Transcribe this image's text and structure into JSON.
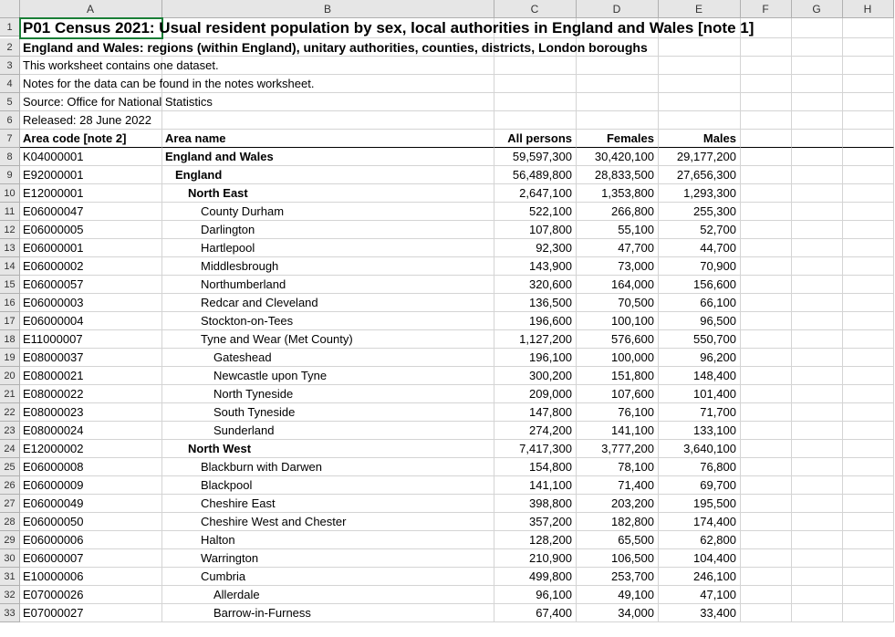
{
  "columns": [
    "A",
    "B",
    "C",
    "D",
    "E",
    "F",
    "G",
    "H"
  ],
  "rowCount": 33,
  "selectedCell": "A1",
  "title": "P01 Census 2021: Usual resident population by sex, local authorities in England and Wales [note 1]",
  "subtitle": "England and Wales: regions (within England), unitary authorities, counties, districts, London boroughs",
  "meta": {
    "line3": "This worksheet contains one dataset.",
    "line4": "Notes for the data can be found in the notes worksheet.",
    "line5": "Source: Office for National Statistics",
    "line6": "Released: 28 June 2022"
  },
  "headers": {
    "area_code": "Area code [note 2]",
    "area_name": "Area name",
    "all_persons": "All persons",
    "females": "Females",
    "males": "Males"
  },
  "rows": [
    {
      "code": "K04000001",
      "name": "England and Wales",
      "indent": 0,
      "bold": true,
      "all": "59,597,300",
      "f": "30,420,100",
      "m": "29,177,200"
    },
    {
      "code": "E92000001",
      "name": "England",
      "indent": 1,
      "bold": true,
      "all": "56,489,800",
      "f": "28,833,500",
      "m": "27,656,300"
    },
    {
      "code": "E12000001",
      "name": "North East",
      "indent": 2,
      "bold": true,
      "all": "2,647,100",
      "f": "1,353,800",
      "m": "1,293,300"
    },
    {
      "code": "E06000047",
      "name": "County Durham",
      "indent": 3,
      "bold": false,
      "all": "522,100",
      "f": "266,800",
      "m": "255,300"
    },
    {
      "code": "E06000005",
      "name": "Darlington",
      "indent": 3,
      "bold": false,
      "all": "107,800",
      "f": "55,100",
      "m": "52,700"
    },
    {
      "code": "E06000001",
      "name": "Hartlepool",
      "indent": 3,
      "bold": false,
      "all": "92,300",
      "f": "47,700",
      "m": "44,700"
    },
    {
      "code": "E06000002",
      "name": "Middlesbrough",
      "indent": 3,
      "bold": false,
      "all": "143,900",
      "f": "73,000",
      "m": "70,900"
    },
    {
      "code": "E06000057",
      "name": "Northumberland",
      "indent": 3,
      "bold": false,
      "all": "320,600",
      "f": "164,000",
      "m": "156,600"
    },
    {
      "code": "E06000003",
      "name": "Redcar and Cleveland",
      "indent": 3,
      "bold": false,
      "all": "136,500",
      "f": "70,500",
      "m": "66,100"
    },
    {
      "code": "E06000004",
      "name": "Stockton-on-Tees",
      "indent": 3,
      "bold": false,
      "all": "196,600",
      "f": "100,100",
      "m": "96,500"
    },
    {
      "code": "E11000007",
      "name": "Tyne and Wear (Met County)",
      "indent": 3,
      "bold": false,
      "all": "1,127,200",
      "f": "576,600",
      "m": "550,700"
    },
    {
      "code": "E08000037",
      "name": "Gateshead",
      "indent": 4,
      "bold": false,
      "all": "196,100",
      "f": "100,000",
      "m": "96,200"
    },
    {
      "code": "E08000021",
      "name": "Newcastle upon Tyne",
      "indent": 4,
      "bold": false,
      "all": "300,200",
      "f": "151,800",
      "m": "148,400"
    },
    {
      "code": "E08000022",
      "name": "North Tyneside",
      "indent": 4,
      "bold": false,
      "all": "209,000",
      "f": "107,600",
      "m": "101,400"
    },
    {
      "code": "E08000023",
      "name": "South Tyneside",
      "indent": 4,
      "bold": false,
      "all": "147,800",
      "f": "76,100",
      "m": "71,700"
    },
    {
      "code": "E08000024",
      "name": "Sunderland",
      "indent": 4,
      "bold": false,
      "all": "274,200",
      "f": "141,100",
      "m": "133,100"
    },
    {
      "code": "E12000002",
      "name": "North West",
      "indent": 2,
      "bold": true,
      "all": "7,417,300",
      "f": "3,777,200",
      "m": "3,640,100"
    },
    {
      "code": "E06000008",
      "name": "Blackburn with Darwen",
      "indent": 3,
      "bold": false,
      "all": "154,800",
      "f": "78,100",
      "m": "76,800"
    },
    {
      "code": "E06000009",
      "name": "Blackpool",
      "indent": 3,
      "bold": false,
      "all": "141,100",
      "f": "71,400",
      "m": "69,700"
    },
    {
      "code": "E06000049",
      "name": "Cheshire East",
      "indent": 3,
      "bold": false,
      "all": "398,800",
      "f": "203,200",
      "m": "195,500"
    },
    {
      "code": "E06000050",
      "name": "Cheshire West and Chester",
      "indent": 3,
      "bold": false,
      "all": "357,200",
      "f": "182,800",
      "m": "174,400"
    },
    {
      "code": "E06000006",
      "name": "Halton",
      "indent": 3,
      "bold": false,
      "all": "128,200",
      "f": "65,500",
      "m": "62,800"
    },
    {
      "code": "E06000007",
      "name": "Warrington",
      "indent": 3,
      "bold": false,
      "all": "210,900",
      "f": "106,500",
      "m": "104,400"
    },
    {
      "code": "E10000006",
      "name": "Cumbria",
      "indent": 3,
      "bold": false,
      "all": "499,800",
      "f": "253,700",
      "m": "246,100"
    },
    {
      "code": "E07000026",
      "name": "Allerdale",
      "indent": 4,
      "bold": false,
      "all": "96,100",
      "f": "49,100",
      "m": "47,100"
    },
    {
      "code": "E07000027",
      "name": "Barrow-in-Furness",
      "indent": 4,
      "bold": false,
      "all": "67,400",
      "f": "34,000",
      "m": "33,400"
    }
  ],
  "colors": {
    "grid": "#d4d4d4",
    "headerBg": "#e6e6e6",
    "selection": "#1a7f37",
    "text": "#000000"
  }
}
